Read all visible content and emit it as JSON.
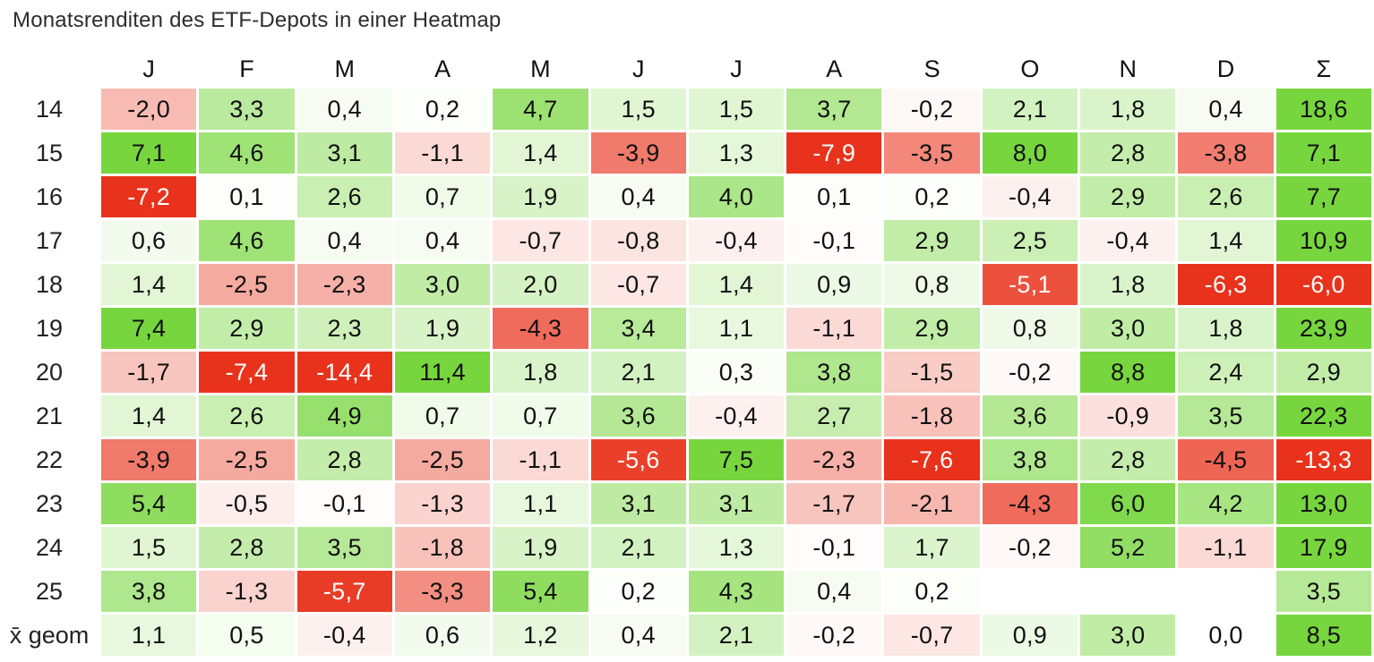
{
  "title": "Monatsrenditen des ETF-Depots in einer Heatmap",
  "chart_data": {
    "type": "heatmap",
    "title": "Monatsrenditen des ETF-Depots in einer Heatmap",
    "columns": [
      "J",
      "F",
      "M",
      "A",
      "M",
      "J",
      "J",
      "A",
      "S",
      "O",
      "N",
      "D",
      "Σ"
    ],
    "rows": [
      {
        "label": "14",
        "values": [
          -2.0,
          3.3,
          0.4,
          0.2,
          4.7,
          1.5,
          1.5,
          3.7,
          -0.2,
          2.1,
          1.8,
          0.4,
          18.6
        ]
      },
      {
        "label": "15",
        "values": [
          7.1,
          4.6,
          3.1,
          -1.1,
          1.4,
          -3.9,
          1.3,
          -7.9,
          -3.5,
          8.0,
          2.8,
          -3.8,
          7.1
        ]
      },
      {
        "label": "16",
        "values": [
          -7.2,
          0.1,
          2.6,
          0.7,
          1.9,
          0.4,
          4.0,
          0.1,
          0.2,
          -0.4,
          2.9,
          2.6,
          7.7
        ]
      },
      {
        "label": "17",
        "values": [
          0.6,
          4.6,
          0.4,
          0.4,
          -0.7,
          -0.8,
          -0.4,
          -0.1,
          2.9,
          2.5,
          -0.4,
          1.4,
          10.9
        ]
      },
      {
        "label": "18",
        "values": [
          1.4,
          -2.5,
          -2.3,
          3.0,
          2.0,
          -0.7,
          1.4,
          0.9,
          0.8,
          -5.1,
          1.8,
          -6.3,
          -6.0
        ]
      },
      {
        "label": "19",
        "values": [
          7.4,
          2.9,
          2.3,
          1.9,
          -4.3,
          3.4,
          1.1,
          -1.1,
          2.9,
          0.8,
          3.0,
          1.8,
          23.9
        ]
      },
      {
        "label": "20",
        "values": [
          -1.7,
          -7.4,
          -14.4,
          11.4,
          1.8,
          2.1,
          0.3,
          3.8,
          -1.5,
          -0.2,
          8.8,
          2.4,
          2.9
        ]
      },
      {
        "label": "21",
        "values": [
          1.4,
          2.6,
          4.9,
          0.7,
          0.7,
          3.6,
          -0.4,
          2.7,
          -1.8,
          3.6,
          -0.9,
          3.5,
          22.3
        ]
      },
      {
        "label": "22",
        "values": [
          -3.9,
          -2.5,
          2.8,
          -2.5,
          -1.1,
          -5.6,
          7.5,
          -2.3,
          -7.6,
          3.8,
          2.8,
          -4.5,
          -13.3
        ]
      },
      {
        "label": "23",
        "values": [
          5.4,
          -0.5,
          -0.1,
          -1.3,
          1.1,
          3.1,
          3.1,
          -1.7,
          -2.1,
          -4.3,
          6.0,
          4.2,
          13.0
        ]
      },
      {
        "label": "24",
        "values": [
          1.5,
          2.8,
          3.5,
          -1.8,
          1.9,
          2.1,
          1.3,
          -0.1,
          1.7,
          -0.2,
          5.2,
          -1.1,
          17.9
        ]
      },
      {
        "label": "25",
        "values": [
          3.8,
          -1.3,
          -5.7,
          -3.3,
          5.4,
          0.2,
          4.3,
          0.4,
          0.2,
          null,
          null,
          null,
          3.5
        ]
      },
      {
        "label": "x̄ geom",
        "values": [
          1.1,
          0.5,
          -0.4,
          0.6,
          1.2,
          0.4,
          2.1,
          -0.2,
          -0.7,
          0.9,
          3.0,
          0.0,
          8.5
        ]
      }
    ],
    "value_format": "decimal comma, one fraction digit",
    "color_scale": {
      "zero_color": "#FFFFFF",
      "positive_max_color": "#77D63E",
      "negative_max_color": "#E8321B",
      "positive_cap": 6.5,
      "negative_cap": 6.0,
      "white_text_threshold": -5.0,
      "text_color": "#101010",
      "text_color_on_dark": "#FFFFFF"
    },
    "legend": "none",
    "grid": "white gaps between cells"
  }
}
